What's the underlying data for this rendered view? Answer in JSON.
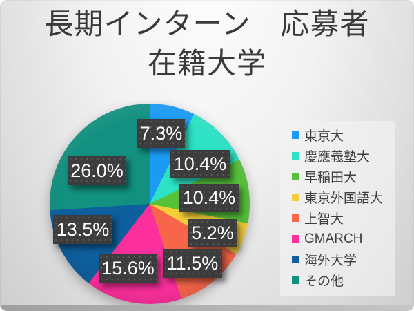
{
  "title": {
    "line1": "長期インターン　応募者",
    "line2": "在籍大学"
  },
  "chart_data": {
    "type": "pie",
    "title": "長期インターン　応募者 在籍大学",
    "start_angle_deg": 0,
    "direction": "clockwise",
    "legend_position": "right",
    "series": [
      {
        "label": "東京大",
        "value": 7.3,
        "display": "7.3%",
        "color": "#1b9bf3"
      },
      {
        "label": "慶應義塾大",
        "value": 10.4,
        "display": "10.4%",
        "color": "#2de2c5"
      },
      {
        "label": "早稲田大",
        "value": 10.4,
        "display": "10.4%",
        "color": "#56c23a"
      },
      {
        "label": "東京外国語大",
        "value": 5.2,
        "display": "5.2%",
        "color": "#f6ce37"
      },
      {
        "label": "上智大",
        "value": 11.5,
        "display": "11.5%",
        "color": "#f7664a"
      },
      {
        "label": "GMARCH",
        "value": 15.6,
        "display": "15.6%",
        "color": "#fb309d"
      },
      {
        "label": "海外大学",
        "value": 13.5,
        "display": "13.5%",
        "color": "#0e5f9e"
      },
      {
        "label": "その他",
        "value": 26.0,
        "display": "26.0%",
        "color": "#129180"
      }
    ]
  }
}
